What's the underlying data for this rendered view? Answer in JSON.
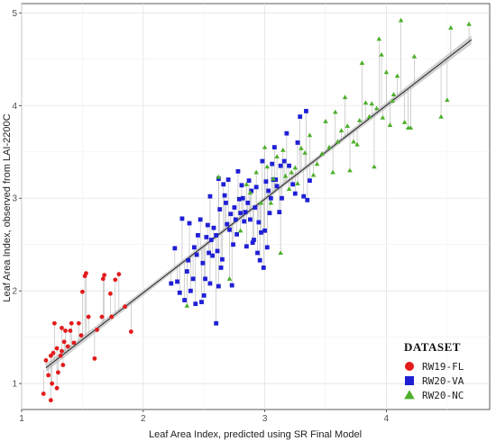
{
  "chart_data": {
    "type": "scatter",
    "xlabel": "Leaf Area Index, predicted using SR Final Model",
    "ylabel": "Leaf Area Index, observed from LAI-2200C",
    "xlim": [
      1.0,
      4.85
    ],
    "ylim": [
      0.72,
      5.1
    ],
    "xticks": [
      1,
      2,
      3,
      4
    ],
    "yticks": [
      1,
      2,
      3,
      4,
      5
    ],
    "grid": true,
    "legend": {
      "title": "DATASET",
      "position": "bottom-right",
      "entries": [
        {
          "label": "RW19-FL",
          "shape": "circle",
          "color": "#e41a1c"
        },
        {
          "label": "RW20-VA",
          "shape": "square",
          "color": "#1f1fd6"
        },
        {
          "label": "RW20-NC",
          "shape": "triangle",
          "color": "#4daf2a"
        }
      ]
    },
    "fit_line": {
      "from": [
        1.2,
        1.17
      ],
      "to": [
        4.7,
        4.71
      ],
      "color": "#222222",
      "band_color": "#bdbdbd"
    },
    "series": [
      {
        "name": "RW19-FL",
        "shape": "circle",
        "color": "#e41a1c",
        "points": [
          [
            1.18,
            0.89
          ],
          [
            1.2,
            1.25
          ],
          [
            1.22,
            1.09
          ],
          [
            1.24,
            0.82
          ],
          [
            1.24,
            1.3
          ],
          [
            1.25,
            1.0
          ],
          [
            1.26,
            1.33
          ],
          [
            1.27,
            1.65
          ],
          [
            1.29,
            1.38
          ],
          [
            1.29,
            0.95
          ],
          [
            1.3,
            1.12
          ],
          [
            1.32,
            1.3
          ],
          [
            1.33,
            1.6
          ],
          [
            1.33,
            1.35
          ],
          [
            1.34,
            1.2
          ],
          [
            1.35,
            1.45
          ],
          [
            1.36,
            1.57
          ],
          [
            1.38,
            1.4
          ],
          [
            1.4,
            1.57
          ],
          [
            1.41,
            1.65
          ],
          [
            1.43,
            1.44
          ],
          [
            1.47,
            1.65
          ],
          [
            1.49,
            1.52
          ],
          [
            1.5,
            1.99
          ],
          [
            1.52,
            2.16
          ],
          [
            1.53,
            2.19
          ],
          [
            1.55,
            1.72
          ],
          [
            1.6,
            1.27
          ],
          [
            1.62,
            1.58
          ],
          [
            1.66,
            1.72
          ],
          [
            1.67,
            2.13
          ],
          [
            1.68,
            2.17
          ],
          [
            1.73,
            1.97
          ],
          [
            1.74,
            1.72
          ],
          [
            1.77,
            2.12
          ],
          [
            1.8,
            2.18
          ],
          [
            1.85,
            1.83
          ],
          [
            1.9,
            1.56
          ]
        ]
      },
      {
        "name": "RW20-VA",
        "shape": "square",
        "color": "#1f1fd6",
        "points": [
          [
            2.23,
            2.08
          ],
          [
            2.26,
            2.46
          ],
          [
            2.28,
            2.1
          ],
          [
            2.3,
            1.98
          ],
          [
            2.32,
            2.78
          ],
          [
            2.34,
            1.9
          ],
          [
            2.36,
            2.21
          ],
          [
            2.37,
            2.33
          ],
          [
            2.38,
            2.73
          ],
          [
            2.39,
            2.0
          ],
          [
            2.41,
            2.13
          ],
          [
            2.42,
            2.47
          ],
          [
            2.43,
            1.86
          ],
          [
            2.44,
            2.39
          ],
          [
            2.45,
            2.6
          ],
          [
            2.47,
            2.77
          ],
          [
            2.48,
            1.88
          ],
          [
            2.49,
            2.3
          ],
          [
            2.5,
            1.95
          ],
          [
            2.51,
            2.13
          ],
          [
            2.52,
            2.58
          ],
          [
            2.53,
            2.71
          ],
          [
            2.54,
            2.41
          ],
          [
            2.55,
            3.02
          ],
          [
            2.56,
            2.55
          ],
          [
            2.57,
            2.38
          ],
          [
            2.58,
            2.68
          ],
          [
            2.6,
            2.6
          ],
          [
            2.61,
            2.43
          ],
          [
            2.62,
            3.21
          ],
          [
            2.63,
            2.88
          ],
          [
            2.64,
            2.25
          ],
          [
            2.65,
            2.34
          ],
          [
            2.66,
            3.15
          ],
          [
            2.67,
            3.03
          ],
          [
            2.68,
            2.95
          ],
          [
            2.69,
            2.72
          ],
          [
            2.7,
            3.2
          ],
          [
            2.71,
            2.66
          ],
          [
            2.72,
            2.83
          ],
          [
            2.73,
            2.06
          ],
          [
            2.74,
            2.5
          ],
          [
            2.75,
            2.9
          ],
          [
            2.76,
            2.77
          ],
          [
            2.77,
            2.61
          ],
          [
            2.78,
            3.29
          ],
          [
            2.79,
            2.99
          ],
          [
            2.8,
            2.84
          ],
          [
            2.81,
            3.14
          ],
          [
            2.82,
            3.0
          ],
          [
            2.83,
            2.75
          ],
          [
            2.84,
            2.85
          ],
          [
            2.85,
            2.48
          ],
          [
            2.86,
            2.95
          ],
          [
            2.87,
            3.19
          ],
          [
            2.88,
            2.77
          ],
          [
            2.89,
            3.08
          ],
          [
            2.9,
            2.52
          ],
          [
            2.91,
            2.55
          ],
          [
            2.92,
            2.9
          ],
          [
            2.93,
            3.12
          ],
          [
            2.94,
            2.41
          ],
          [
            2.95,
            2.74
          ],
          [
            2.96,
            2.33
          ],
          [
            2.97,
            2.63
          ],
          [
            2.98,
            3.4
          ],
          [
            2.99,
            2.25
          ],
          [
            3.0,
            2.65
          ],
          [
            3.01,
            3.18
          ],
          [
            3.02,
            2.47
          ],
          [
            3.03,
            3.08
          ],
          [
            3.04,
            2.84
          ],
          [
            3.05,
            3.0
          ],
          [
            3.06,
            3.37
          ],
          [
            3.07,
            3.2
          ],
          [
            3.08,
            3.55
          ],
          [
            3.09,
            3.2
          ],
          [
            3.1,
            3.13
          ],
          [
            3.12,
            2.85
          ],
          [
            3.13,
            3.35
          ],
          [
            3.14,
            3.0
          ],
          [
            3.16,
            3.4
          ],
          [
            3.18,
            3.7
          ],
          [
            3.2,
            3.35
          ],
          [
            3.23,
            3.15
          ],
          [
            3.25,
            3.05
          ],
          [
            3.27,
            3.6
          ],
          [
            3.29,
            3.88
          ],
          [
            3.32,
            3.02
          ],
          [
            3.34,
            3.94
          ],
          [
            3.35,
            2.98
          ],
          [
            3.37,
            3.19
          ],
          [
            2.62,
            2.05
          ],
          [
            2.55,
            2.08
          ],
          [
            2.6,
            1.65
          ]
        ]
      },
      {
        "name": "RW20-NC",
        "shape": "triangle",
        "color": "#4daf2a",
        "points": [
          [
            2.36,
            1.84
          ],
          [
            2.62,
            3.23
          ],
          [
            2.71,
            2.13
          ],
          [
            2.8,
            2.65
          ],
          [
            2.85,
            3.15
          ],
          [
            2.88,
            3.06
          ],
          [
            2.93,
            3.28
          ],
          [
            2.97,
            2.95
          ],
          [
            3.0,
            3.55
          ],
          [
            3.02,
            3.34
          ],
          [
            3.05,
            2.95
          ],
          [
            3.07,
            3.21
          ],
          [
            3.1,
            3.45
          ],
          [
            3.13,
            2.41
          ],
          [
            3.15,
            3.52
          ],
          [
            3.17,
            3.24
          ],
          [
            3.2,
            3.1
          ],
          [
            3.22,
            3.28
          ],
          [
            3.25,
            3.33
          ],
          [
            3.27,
            3.16
          ],
          [
            3.3,
            3.54
          ],
          [
            3.33,
            3.49
          ],
          [
            3.37,
            3.68
          ],
          [
            3.4,
            3.25
          ],
          [
            3.43,
            3.37
          ],
          [
            3.47,
            3.48
          ],
          [
            3.5,
            3.83
          ],
          [
            3.53,
            3.55
          ],
          [
            3.56,
            3.28
          ],
          [
            3.58,
            3.93
          ],
          [
            3.6,
            3.61
          ],
          [
            3.63,
            3.73
          ],
          [
            3.66,
            4.09
          ],
          [
            3.68,
            3.78
          ],
          [
            3.7,
            3.3
          ],
          [
            3.73,
            3.61
          ],
          [
            3.76,
            3.58
          ],
          [
            3.78,
            3.84
          ],
          [
            3.8,
            4.46
          ],
          [
            3.83,
            4.03
          ],
          [
            3.86,
            3.88
          ],
          [
            3.88,
            4.02
          ],
          [
            3.9,
            3.34
          ],
          [
            3.92,
            3.97
          ],
          [
            3.94,
            4.72
          ],
          [
            3.97,
            3.87
          ],
          [
            4.0,
            4.36
          ],
          [
            4.03,
            3.79
          ],
          [
            4.06,
            4.12
          ],
          [
            4.09,
            4.32
          ],
          [
            4.12,
            4.92
          ],
          [
            4.15,
            3.82
          ],
          [
            4.18,
            3.76
          ],
          [
            4.2,
            3.76
          ],
          [
            4.23,
            4.53
          ],
          [
            4.45,
            3.88
          ],
          [
            4.5,
            4.06
          ],
          [
            4.53,
            4.84
          ],
          [
            4.68,
            4.88
          ],
          [
            4.05,
            4.05
          ],
          [
            3.96,
            4.55
          ]
        ]
      }
    ]
  }
}
